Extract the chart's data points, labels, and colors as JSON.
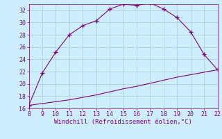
{
  "xlabel": "Windchill (Refroidissement éolien,°C)",
  "xlim": [
    8,
    22
  ],
  "ylim": [
    16,
    33
  ],
  "xticks": [
    8,
    9,
    10,
    11,
    12,
    13,
    14,
    15,
    16,
    17,
    18,
    19,
    20,
    21,
    22
  ],
  "yticks": [
    16,
    18,
    20,
    22,
    24,
    26,
    28,
    30,
    32
  ],
  "curve1_x": [
    8,
    9,
    10,
    11,
    12,
    13,
    14,
    15,
    16,
    17,
    18,
    19,
    20,
    21,
    22
  ],
  "curve1_y": [
    16.5,
    21.8,
    25.2,
    28.0,
    29.5,
    30.3,
    32.2,
    33.0,
    32.8,
    33.2,
    32.2,
    30.8,
    28.5,
    24.8,
    22.3
  ],
  "curve2_x": [
    8,
    9,
    10,
    11,
    12,
    13,
    14,
    15,
    16,
    17,
    18,
    19,
    20,
    21,
    22
  ],
  "curve2_y": [
    16.5,
    16.8,
    17.1,
    17.4,
    17.8,
    18.2,
    18.7,
    19.2,
    19.6,
    20.1,
    20.6,
    21.1,
    21.5,
    21.9,
    22.3
  ],
  "line_color": "#800080",
  "marker": "+",
  "marker_size": 4,
  "marker_edge_width": 1.0,
  "line_width": 0.8,
  "bg_color": "#cceeff",
  "grid_color": "#aacccc",
  "tick_label_color": "#800080",
  "xlabel_color": "#800080",
  "xlabel_fontsize": 6.5,
  "tick_fontsize": 6,
  "spine_color": "#800080"
}
